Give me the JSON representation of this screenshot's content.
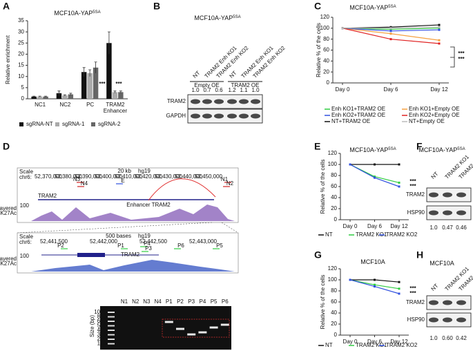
{
  "chart_data": [
    {
      "type": "bar",
      "panel": "A",
      "title": [
        "MCF10A-YAP",
        "5SA"
      ],
      "y_label": "Relative enrichment",
      "categories": [
        "NC1",
        "NC2",
        "PC",
        "TRAM2 Enhancer"
      ],
      "series": [
        {
          "name": "sgRNA-NT",
          "color": "#111111",
          "values": [
            1,
            2.5,
            12,
            25
          ],
          "errors": [
            0.2,
            1,
            2,
            5
          ]
        },
        {
          "name": "sgRNA-1",
          "color": "#aaaaaa",
          "values": [
            1,
            1.5,
            11.5,
            3
          ],
          "errors": [
            0.2,
            0.3,
            1.5,
            0.5
          ]
        },
        {
          "name": "sgRNA-2",
          "color": "#666666",
          "values": [
            1,
            2,
            14,
            3
          ],
          "errors": [
            0.2,
            0.5,
            2.5,
            0.5
          ]
        }
      ],
      "ylim": [
        0,
        35
      ],
      "yticks": [
        0,
        5,
        10,
        15,
        20,
        25,
        30,
        35
      ],
      "annotations": [
        "***",
        "***"
      ]
    },
    {
      "type": "line",
      "panel": "C",
      "title": [
        "MCF10A-YAP",
        "5SA"
      ],
      "y_label": "Relative % of the cells",
      "categories": [
        "Day 0",
        "Day 6",
        "Day 12"
      ],
      "series": [
        {
          "name": "Enh KO1+TRAM2 OE",
          "color": "#2ecc40",
          "values": [
            100,
            98,
            100
          ]
        },
        {
          "name": "Enh KO1+Empty OE",
          "color": "#f5a040",
          "values": [
            100,
            90,
            78
          ]
        },
        {
          "name": "Enh KO2+TRAM2 OE",
          "color": "#3050e0",
          "values": [
            100,
            95,
            97
          ]
        },
        {
          "name": "Enh KO2+Empty OE",
          "color": "#e02020",
          "values": [
            100,
            80,
            72
          ]
        },
        {
          "name": "NT+TRAM2 OE",
          "color": "#111111",
          "values": [
            100,
            102,
            106
          ]
        },
        {
          "name": "NT+Empty OE",
          "color": "#bbbbbb",
          "values": [
            100,
            100,
            102
          ]
        }
      ],
      "ylim": [
        0,
        120
      ],
      "yticks": [
        0,
        20,
        40,
        60,
        80,
        100,
        120
      ],
      "annotations": [
        "***",
        "***"
      ]
    },
    {
      "type": "line",
      "panel": "E",
      "title": [
        "MCF10A-YAP",
        "5SA"
      ],
      "y_label": "Relative % of the cells",
      "categories": [
        "Day 0",
        "Day 6",
        "Day 12"
      ],
      "series": [
        {
          "name": "NT",
          "color": "#111111",
          "values": [
            100,
            100,
            100
          ]
        },
        {
          "name": "TRAM2 KO1",
          "color": "#2ecc40",
          "values": [
            100,
            78,
            67
          ]
        },
        {
          "name": "TRAM2 KO2",
          "color": "#3050e0",
          "values": [
            100,
            76,
            60
          ]
        }
      ],
      "ylim": [
        0,
        120
      ],
      "yticks": [
        0,
        20,
        40,
        60,
        80,
        100,
        120
      ],
      "annotations": [
        "***",
        "***"
      ]
    },
    {
      "type": "line",
      "panel": "G",
      "title": [
        "MCF10A"
      ],
      "y_label": "Relative % of the cells",
      "categories": [
        "Day 0",
        "Day 6",
        "Day 12"
      ],
      "series": [
        {
          "name": "NT",
          "color": "#111111",
          "values": [
            100,
            100,
            96
          ]
        },
        {
          "name": "TRAM2 KO1",
          "color": "#2ecc40",
          "values": [
            100,
            91,
            84
          ]
        },
        {
          "name": "TRAM2 KO2",
          "color": "#3050e0",
          "values": [
            100,
            88,
            75
          ]
        }
      ],
      "ylim": [
        0,
        120
      ],
      "yticks": [
        0,
        20,
        40,
        60,
        80,
        100,
        120
      ],
      "annotations": [
        "***",
        "***"
      ]
    }
  ],
  "blots": [
    {
      "panel": "B",
      "title": [
        "MCF10A-YAP",
        "5SA"
      ],
      "lanes": [
        "NT",
        "TRAM2 Enh KO1",
        "TRAM2 Enh KO2",
        "NT",
        "TRAM2 Enh KO1",
        "TRAM2 Enh KO2"
      ],
      "groups": [
        "Empty OE",
        "TRAM2 OE"
      ],
      "quant": [
        "1.0",
        "0.7",
        "0.6",
        "1.2",
        "1.1",
        "1.0"
      ],
      "rows": [
        "TRAM2",
        "GAPDH"
      ]
    },
    {
      "panel": "F",
      "title": [
        "MCF10A-YAP",
        "5SA"
      ],
      "lanes": [
        "NT",
        "TRAM2 KO1",
        "TRAM2 KO2"
      ],
      "quant": [
        "1.0",
        "0.47",
        "0.46"
      ],
      "rows": [
        "TRAM2",
        "HSP90"
      ]
    },
    {
      "panel": "H",
      "title": [
        "MCF10A"
      ],
      "lanes": [
        "NT",
        "TRAM2 KO1",
        "TRAM2 KO2"
      ],
      "quant": [
        "1.0",
        "0.60",
        "0.42"
      ],
      "rows": [
        "TRAM2",
        "HSP90"
      ]
    }
  ],
  "genome": {
    "panel": "D",
    "scale": "Scale",
    "chrom": "chr6:",
    "scale_bar": "20 kb",
    "build": "hg19",
    "positions": [
      "52,370,000",
      "52,380,000",
      "52,390,000",
      "52,400,000",
      "52,410,000",
      "52,420,000",
      "52,430,000",
      "52,440,000",
      "52,450,000"
    ],
    "primers": [
      "N3",
      "N4",
      "E",
      "N1",
      "N2"
    ],
    "gene": "TRAM2",
    "enhancer": "Enhancer TRAM2",
    "track": [
      "Layered",
      "H3K27Ac"
    ],
    "track_max": "100",
    "zoom": {
      "scale": "Scale",
      "chrom": "chr6:",
      "scale_bar": "500 bases",
      "build": "hg19",
      "positions": [
        "52,441,500",
        "52,442,000",
        "52,442,500",
        "52,443,000"
      ],
      "primers": [
        "P2",
        "P1",
        "P4",
        "P3",
        "P6",
        "P5"
      ],
      "gene": "TRAM2",
      "track": [
        "Layered",
        "H3K27Ac"
      ],
      "track_max": "100"
    },
    "gel": {
      "size_label": "Size (bp)",
      "lanes": [
        "N1",
        "N2",
        "N3",
        "N4",
        "P1",
        "P2",
        "P3",
        "P4",
        "P5",
        "P6"
      ],
      "ladder": [
        1000,
        850,
        650,
        500,
        400,
        300,
        200,
        100
      ]
    }
  }
}
